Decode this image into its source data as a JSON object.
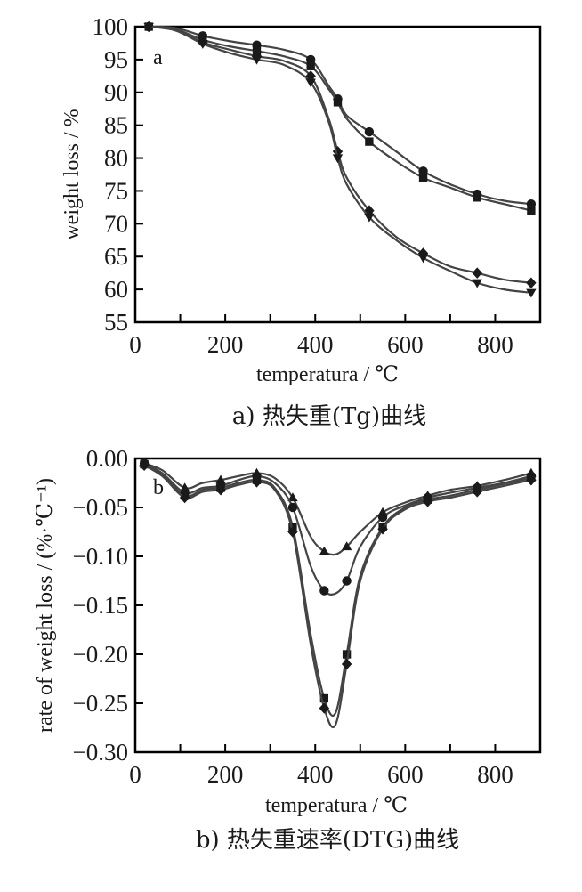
{
  "chart_data": [
    {
      "type": "line",
      "panel": "a",
      "caption": "a) 热失重(Tg)曲线",
      "xlabel": "temperatura / ℃",
      "ylabel": "weight loss / %",
      "xlim": [
        0,
        900
      ],
      "ylim": [
        55,
        100
      ],
      "xticks": [
        "0",
        "200",
        "400",
        "600",
        "800"
      ],
      "yticks": [
        "55",
        "60",
        "65",
        "70",
        "75",
        "80",
        "85",
        "90",
        "95",
        "100"
      ],
      "x": [
        30,
        90,
        150,
        210,
        270,
        330,
        390,
        430,
        450,
        470,
        520,
        580,
        640,
        700,
        760,
        820,
        880
      ],
      "series": [
        {
          "marker": "circle",
          "values": [
            100,
            99.8,
            98.6,
            97.8,
            97.2,
            96.5,
            95.0,
            91.0,
            89.0,
            86.5,
            84.0,
            81.0,
            78.0,
            76.0,
            74.5,
            73.5,
            73.0
          ]
        },
        {
          "marker": "square",
          "values": [
            100,
            99.6,
            98.0,
            97.0,
            96.3,
            95.5,
            94.0,
            90.5,
            88.5,
            86.0,
            82.5,
            79.5,
            77.0,
            75.5,
            74.0,
            73.0,
            72.0
          ]
        },
        {
          "marker": "diamond",
          "values": [
            100,
            99.5,
            97.6,
            96.5,
            95.5,
            94.8,
            92.5,
            86.0,
            81.0,
            77.0,
            72.0,
            68.0,
            65.5,
            63.5,
            62.5,
            61.5,
            61.0
          ]
        },
        {
          "marker": "triangle-down",
          "values": [
            100,
            99.4,
            97.4,
            96.0,
            95.0,
            94.2,
            91.5,
            85.5,
            80.0,
            76.0,
            71.0,
            67.5,
            64.8,
            62.8,
            61.0,
            60.0,
            59.5
          ]
        }
      ]
    },
    {
      "type": "line",
      "panel": "b",
      "caption": "b) 热失重速率(DTG)曲线",
      "xlabel": "temperatura / ℃",
      "ylabel": "rate of weight loss / (%·℃⁻¹)",
      "xlim": [
        0,
        900
      ],
      "ylim": [
        -0.3,
        0.0
      ],
      "xticks": [
        "0",
        "200",
        "400",
        "600",
        "800"
      ],
      "yticks": [
        "-0.30",
        "-0.25",
        "-0.20",
        "-0.15",
        "-0.10",
        "-0.05",
        "0.00"
      ],
      "x": [
        20,
        60,
        110,
        150,
        190,
        230,
        270,
        310,
        350,
        390,
        420,
        445,
        470,
        500,
        550,
        600,
        650,
        700,
        760,
        820,
        880
      ],
      "series": [
        {
          "marker": "triangle-up",
          "values": [
            -0.005,
            -0.012,
            -0.03,
            -0.025,
            -0.022,
            -0.018,
            -0.015,
            -0.02,
            -0.04,
            -0.08,
            -0.095,
            -0.098,
            -0.09,
            -0.075,
            -0.055,
            -0.045,
            -0.038,
            -0.032,
            -0.028,
            -0.022,
            -0.015
          ]
        },
        {
          "marker": "circle",
          "values": [
            -0.005,
            -0.015,
            -0.035,
            -0.03,
            -0.028,
            -0.022,
            -0.018,
            -0.025,
            -0.05,
            -0.11,
            -0.135,
            -0.138,
            -0.125,
            -0.09,
            -0.06,
            -0.048,
            -0.04,
            -0.035,
            -0.03,
            -0.025,
            -0.018
          ]
        },
        {
          "marker": "square",
          "values": [
            -0.006,
            -0.016,
            -0.038,
            -0.032,
            -0.03,
            -0.025,
            -0.022,
            -0.03,
            -0.07,
            -0.18,
            -0.245,
            -0.26,
            -0.2,
            -0.12,
            -0.07,
            -0.05,
            -0.042,
            -0.038,
            -0.032,
            -0.026,
            -0.02
          ]
        },
        {
          "marker": "diamond",
          "values": [
            -0.007,
            -0.018,
            -0.04,
            -0.034,
            -0.032,
            -0.027,
            -0.024,
            -0.032,
            -0.075,
            -0.19,
            -0.255,
            -0.272,
            -0.21,
            -0.125,
            -0.072,
            -0.052,
            -0.044,
            -0.04,
            -0.034,
            -0.028,
            -0.022
          ]
        }
      ]
    }
  ]
}
